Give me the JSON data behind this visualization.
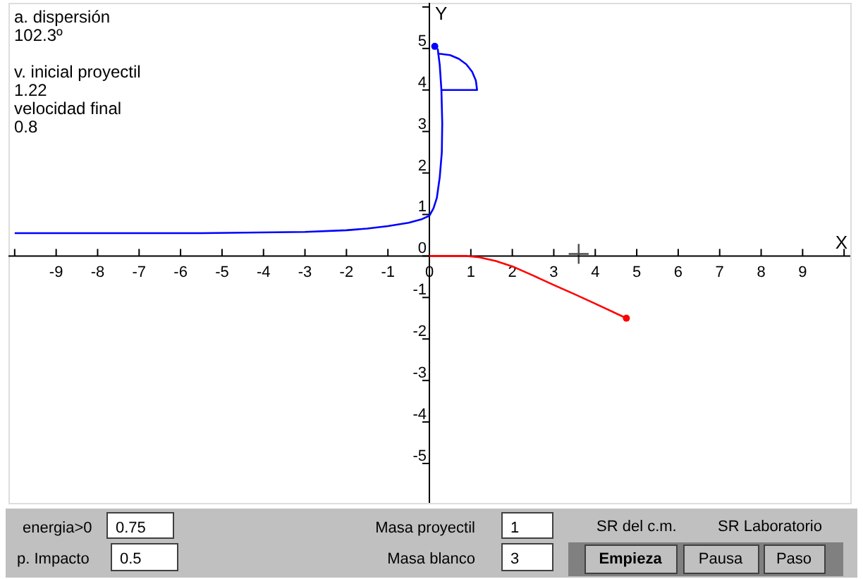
{
  "chart_data": {
    "type": "line",
    "xlabel": "X",
    "ylabel": "Y",
    "xlim": [
      -10.15,
      10.15
    ],
    "ylim": [
      -5.95,
      6.1
    ],
    "xticks": [
      {
        "value": -10,
        "label": null
      },
      -9,
      -8,
      -7,
      -6,
      -5,
      -4,
      -3,
      -2,
      -1,
      0,
      1,
      2,
      3,
      4,
      5,
      6,
      7,
      8,
      9,
      {
        "value": 10,
        "label": null
      }
    ],
    "yticks": [
      -5,
      -4,
      -3,
      -2,
      -1,
      0,
      1,
      2,
      3,
      4,
      5,
      {
        "value": 6,
        "label": null
      }
    ],
    "marker": "none",
    "line_style": "solid",
    "series": [
      {
        "type": "line",
        "color": "#0000ff",
        "x": [
          -10,
          -5.5,
          -3,
          -2,
          -1.5,
          -1,
          -0.5,
          -0.2,
          0,
          0.1,
          0.18,
          0.25,
          0.3,
          0.31,
          0.29,
          0.25,
          0.2
        ],
        "values": [
          0.55,
          0.55,
          0.58,
          0.62,
          0.66,
          0.72,
          0.8,
          0.88,
          0.97,
          1.15,
          1.4,
          1.9,
          2.5,
          3.2,
          4.0,
          4.6,
          5.0
        ]
      },
      {
        "type": "line",
        "color": "#0000ff",
        "x": [
          0.27,
          1.15,
          1.12,
          1.03,
          0.89,
          0.71,
          0.5,
          0.27,
          0.2
        ],
        "values": [
          4,
          4,
          4.23,
          4.44,
          4.62,
          4.75,
          4.84,
          4.87,
          4.87
        ]
      },
      {
        "type": "line",
        "color": "#ff0000",
        "x": [
          0,
          0.9,
          1.2,
          1.6,
          2,
          2.5,
          3,
          3.5,
          4,
          4.75
        ],
        "values": [
          0,
          0,
          -0.03,
          -0.12,
          -0.25,
          -0.47,
          -0.7,
          -0.92,
          -1.15,
          -1.5
        ]
      },
      {
        "type": "scatter",
        "marker": "circle",
        "color": "#0000ff",
        "x": [
          0.13
        ],
        "values": [
          5.05
        ]
      },
      {
        "type": "scatter",
        "marker": "circle",
        "color": "#ff0000",
        "x": [
          4.75
        ],
        "values": [
          -1.5
        ]
      },
      {
        "type": "scatter",
        "marker": "cross",
        "color": "#000000",
        "x": [
          3.6
        ],
        "values": [
          0.05
        ]
      }
    ],
    "annotations": [
      "a. dispersión",
      "102.3º",
      "v. inicial proyectil",
      "1.22",
      "velocidad final",
      "0.8",
      "energia>0",
      "0.75",
      "p. Impacto",
      "0.5",
      "Masa proyectil",
      "1",
      "Masa blanco",
      "3",
      "SR del c.m.",
      "SR Laboratorio",
      "Empieza",
      "Pausa",
      "Paso"
    ]
  }
}
